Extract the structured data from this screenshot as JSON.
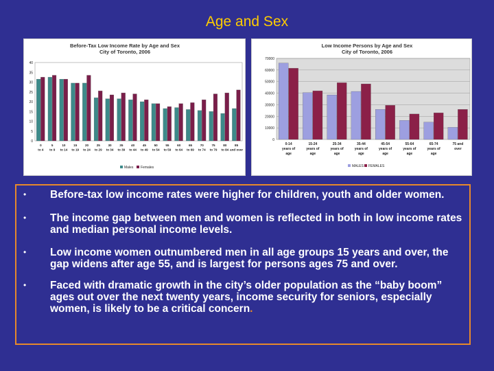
{
  "slide": {
    "title": "Age and Sex"
  },
  "chart_data": [
    {
      "type": "bar",
      "title": "Before-Tax Low Income Rate by Age and Sex",
      "subtitle": "City of Toronto, 2006",
      "categories": [
        [
          "0",
          "to 4"
        ],
        [
          "5",
          "to 9"
        ],
        [
          "10",
          "to 14"
        ],
        [
          "15",
          "to 19"
        ],
        [
          "20",
          "to 24"
        ],
        [
          "25",
          "to 29"
        ],
        [
          "30",
          "to 34"
        ],
        [
          "35",
          "to 39"
        ],
        [
          "40",
          "to 44"
        ],
        [
          "45",
          "to 49"
        ],
        [
          "50",
          "to 54"
        ],
        [
          "55",
          "to 59"
        ],
        [
          "60",
          "to 64"
        ],
        [
          "65",
          "to 69"
        ],
        [
          "70",
          "to 74"
        ],
        [
          "75",
          "to 79"
        ],
        [
          "80",
          "to 84"
        ],
        [
          "85",
          "and over"
        ]
      ],
      "series": [
        {
          "name": "Males",
          "color": "#3d8a8a",
          "values": [
            31.5,
            32.5,
            31.5,
            29.5,
            29.5,
            22,
            21.5,
            21.5,
            21,
            20,
            19,
            16.5,
            17,
            16,
            15.5,
            15,
            14,
            16.5
          ]
        },
        {
          "name": "Females",
          "color": "#7a1e4a",
          "values": [
            32.5,
            33.5,
            31.5,
            29.5,
            33.5,
            25.5,
            23.5,
            24.5,
            24,
            21,
            19,
            17.5,
            19,
            19.5,
            21,
            24,
            24.5,
            26
          ]
        }
      ],
      "ylim": [
        0,
        40
      ],
      "yticks": [
        0,
        5,
        10,
        15,
        20,
        25,
        30,
        35,
        40
      ],
      "grid": false,
      "legend": "bottom"
    },
    {
      "type": "bar",
      "title": "Low Income Persons by Age and Sex",
      "subtitle": "City of Toronto, 2006",
      "categories": [
        [
          "0-14",
          "years of",
          "age"
        ],
        [
          "15-24",
          "years of",
          "age"
        ],
        [
          "25-34",
          "years of",
          "age"
        ],
        [
          "35-44",
          "years of",
          "age"
        ],
        [
          "45-54",
          "years of",
          "age"
        ],
        [
          "55-64",
          "years of",
          "age"
        ],
        [
          "65-74",
          "years of",
          "age"
        ],
        [
          "75 and",
          "over"
        ]
      ],
      "series": [
        {
          "name": "MALES",
          "color": "#9d9fe0",
          "values": [
            66000,
            40500,
            38500,
            41500,
            26000,
            16500,
            15000,
            10500
          ]
        },
        {
          "name": "FEMALES",
          "color": "#8b2048",
          "values": [
            61500,
            42000,
            49000,
            48000,
            29500,
            22000,
            23000,
            26000
          ]
        }
      ],
      "ylim": [
        0,
        70000
      ],
      "yticks": [
        0,
        10000,
        20000,
        30000,
        40000,
        50000,
        60000,
        70000
      ],
      "grid": true,
      "legend": "bottom"
    }
  ],
  "bullets": [
    {
      "text": "Before-tax low income rates were higher for children, youth and older women.",
      "accent": ""
    },
    {
      "text": "The income gap between men and women is reflected in both in low income rates and median personal income levels.",
      "accent": ""
    },
    {
      "text": "Low income women outnumbered men in all age groups 15 years and over, the gap widens after age 55, and is largest for persons ages 75 and over.",
      "accent": ""
    },
    {
      "text": "Faced with dramatic growth in the city’s older population as the “baby boom” ages out over the next twenty years, income security for seniors, especially women, is likely to be a critical concern",
      "accent": "."
    }
  ],
  "bullet_glyph": "•"
}
